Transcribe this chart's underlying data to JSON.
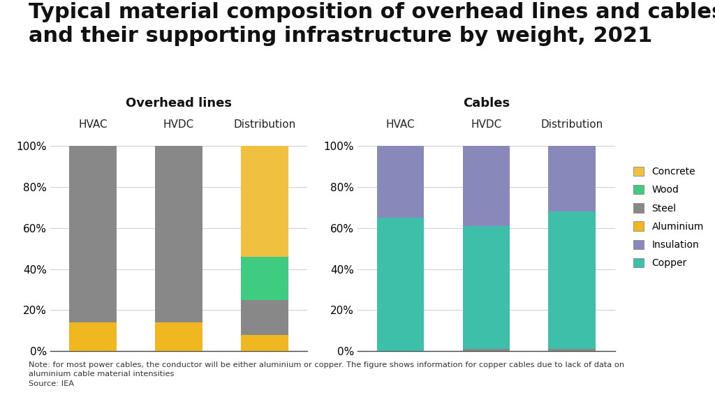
{
  "title": "Typical material composition of overhead lines and cables\nand their supporting infrastructure by weight, 2021",
  "note": "Note: for most power cables, the conductor will be either aluminium or copper. The figure shows information for copper cables due to lack of data on\naluminium cable material intensities\nSource: IEA",
  "overhead_subtitle": "Overhead lines",
  "cables_subtitle": "Cables",
  "overhead_categories": [
    "HVAC",
    "HVDC",
    "Distribution"
  ],
  "cables_categories": [
    "HVAC",
    "HVDC",
    "Distribution"
  ],
  "colors": {
    "Concrete": "#f0c040",
    "Wood": "#40cc80",
    "Steel": "#888888",
    "Aluminium": "#f0b820",
    "Insulation": "#8888bb",
    "Copper": "#3dbfaa"
  },
  "overhead_data": {
    "HVAC": {
      "Aluminium": 14,
      "Steel": 86,
      "Wood": 0,
      "Concrete": 0,
      "Insulation": 0,
      "Copper": 0
    },
    "HVDC": {
      "Aluminium": 14,
      "Steel": 86,
      "Wood": 0,
      "Concrete": 0,
      "Insulation": 0,
      "Copper": 0
    },
    "Distribution": {
      "Aluminium": 8,
      "Steel": 17,
      "Wood": 21,
      "Concrete": 54,
      "Insulation": 0,
      "Copper": 0
    }
  },
  "cables_data": {
    "HVAC": {
      "Copper": 65,
      "Steel": 0,
      "Insulation": 35,
      "Aluminium": 0,
      "Wood": 0,
      "Concrete": 0
    },
    "HVDC": {
      "Copper": 60,
      "Steel": 1,
      "Insulation": 39,
      "Aluminium": 0,
      "Wood": 0,
      "Concrete": 0
    },
    "Distribution": {
      "Copper": 67,
      "Steel": 1,
      "Insulation": 32,
      "Aluminium": 0,
      "Wood": 0,
      "Concrete": 0
    }
  },
  "stack_order": [
    "Aluminium",
    "Steel",
    "Wood",
    "Concrete",
    "Copper",
    "Insulation"
  ],
  "legend_order": [
    "Concrete",
    "Wood",
    "Steel",
    "Aluminium",
    "Insulation",
    "Copper"
  ],
  "background_color": "#ffffff",
  "title_fontsize": 22,
  "subtitle_fontsize": 13,
  "cat_label_fontsize": 11,
  "tick_fontsize": 11,
  "bar_width": 0.55,
  "note_fontsize": 8.2
}
